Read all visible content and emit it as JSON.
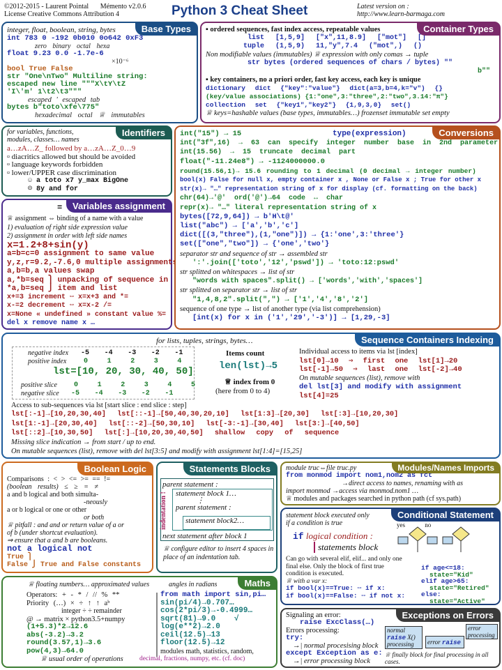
{
  "header": {
    "copyright": "©2012-2015 - Laurent Pointal",
    "version": "Mémento v2.0.6",
    "license": "License Creative Commons Attribution 4",
    "title": "Python 3 Cheat Sheet",
    "latest_label": "Latest version on :",
    "latest_url": "http://www.learn-barmaga.com"
  },
  "colors": {
    "base": "#1b4f86",
    "container": "#7a2a6a",
    "ident": "#1c5b52",
    "vars": "#4a2b8c",
    "conv": "#b5501e",
    "seq": "#1d5b9b",
    "bool": "#cc6a1f",
    "stmt": "#1e6062",
    "mod": "#837c22",
    "cond": "#1c3f7a",
    "maths": "#3c7d33",
    "exc": "#3a3a3a"
  },
  "base_types": {
    "title": "Base Types",
    "subtitle": "integer, float, boolean, string, bytes",
    "lines": [
      "  int  783   0  -192    0b010  0o642  0xF3",
      "               zero              binary    octal     hexa",
      "float  9.23  0.0    -1.7e-6",
      "                                 ×10⁻⁶",
      " bool  True  False",
      "  str  \"One\\nTwo\"          Multiline string:",
      "       escaped new line       \"\"\"X\\tY\\tZ",
      "         'I\\'m'               1\\t2\\t3\"\"\"",
      "         escaped '            escaped tab",
      "bytes  b\"toto\\xfe\\775\"",
      "         hexadecimal  octal              ♕ immutables"
    ]
  },
  "container_types": {
    "title": "Container Types",
    "lines": [
      "▪ ordered sequences, fast index access, repeatable values",
      "        list  [1,5,9]     [\"x\",11,8.9]      [\"mot\"]       []",
      "       tuple  (1,5,9)     11,\"y\",7.4       (\"mot\",)      ()",
      "Non modifiable values (immutables)  ♕ expression with only comas → tuple",
      "        str bytes  (ordered sequences of chars / bytes)          \"\"",
      "                                                                b\"\"",
      "▪ key containers, no a priori order, fast key access, each key is unique",
      "dictionary   dict {\"key\":\"value\"}       dict(a=3,b=4,k=\"v\")    {}",
      "(key/value associations) {1:\"one\",3:\"three\",2:\"two\",3.14:\"π\"}",
      "collection    set {\"key1\",\"key2\"}      {1,9,3,0}            set()",
      "♕ keys=hashable values (base types, immutables…)   frozenset immutable set   empty"
    ]
  },
  "identifiers": {
    "title": "Identifiers",
    "subtitle": "for variables, functions,\nmodules, classes… names",
    "lines": [
      "a…zA…Z_ followed by a…zA…Z_0…9",
      "▫ diacritics allowed but should be avoided",
      "▫ language keywords forbidden",
      "▫ lower/UPPER case discrimination",
      "      ☺ a toto x7 y_max BigOne",
      "      ☹ 8y and for"
    ]
  },
  "variables": {
    "title": "Variables assignment",
    "symbol": "=",
    "lines": [
      "♕ assignment ⇔ binding of a name with a value",
      " 1) evaluation of right side expression value",
      " 2) assignment in order with left side names",
      "x=1.2+8+sin(y)",
      "a=b=c=0   assignment to same value",
      "y,z,r=9.2,-7.6,0  multiple assignments",
      "a,b=b,a   values swap",
      "a,*b=seq ⎫ unpacking of sequence in",
      "*a,b=seq ⎭ item and list",
      "x+=3      increment ⇔ x=x+3              and *=",
      "x-=2      decrement ⇔ x=x-2                  /=",
      "x=None    « undefined » constant value       %=",
      "del x     remove name x                       …"
    ]
  },
  "conversions": {
    "title": "Conversions",
    "type_expr": "type(expression)",
    "lines": [
      "int(\"15\") → 15",
      "int(\"3f\",16) → 63        can specify integer number base in 2nd parameter",
      "int(15.56) → 15           truncate decimal part",
      "float(\"-11.24e8\") → -1124000000.0",
      "round(15.56,1)→ 15.6      rounding to 1 decimal (0 decimal → integer number)",
      "bool(x)  False for null x, empty container x , None or False x ; True for other x",
      "str(x)→ \"…\"    representation string of x for display (cf. formatting on the back)",
      "chr(64)→'@'  ord('@')→64        code ↔ char",
      "repr(x)→ \"…\"  literal representation string of x",
      "bytes([72,9,64]) → b'H\\t@'",
      "list(\"abc\") → ['a','b','c']",
      "dict([(3,\"three\"),(1,\"one\")]) → {1:'one',3:'three'}",
      "set([\"one\",\"two\"]) → {'one','two'}",
      "separator str and sequence of str → assembled str",
      "   ':'.join(['toto','12','pswd']) → 'toto:12:pswd'",
      "str splitted on whitespaces → list of str",
      "   \"words with  spaces\".split() → ['words','with','spaces']",
      "str splitted on separator str → list of str",
      "   \"1,4,8,2\".split(\",\") → ['1','4','8','2']",
      "sequence of one type → list of another type (via list comprehension)",
      "   [int(x) for x in ('1','29','-3')] → [1,29,-3]"
    ]
  },
  "sequence": {
    "title": "Sequence Containers Indexing",
    "subtitle": "for lists, tuples, strings, bytes…",
    "table": {
      "neg_label": "negative index",
      "neg": [
        "-5",
        "-4",
        "-3",
        "-2",
        "-1"
      ],
      "pos_label": "positive index",
      "pos": [
        "0",
        "1",
        "2",
        "3",
        "4"
      ],
      "lst": "lst=[10, 20, 30, 40, 50]",
      "pslice_label": "positive slice",
      "pslice": [
        "0",
        "1",
        "2",
        "3",
        "4",
        "5"
      ],
      "nslice_label": "negative slice",
      "nslice": [
        "-5",
        "-4",
        "-3",
        "-2",
        "-1"
      ]
    },
    "count_title": "Items count",
    "count_expr": "len(lst)→5",
    "index_note": "♕ index from 0",
    "index_range": "(here from 0 to 4)",
    "items_lines": [
      "Individual access to items via lst [index]",
      "lst[0]→10    ⇒ first one        lst[1]→20",
      "lst[-1]→50   ⇒ last one         lst[-2]→40",
      "On mutable sequences (list), remove with",
      "del lst[3] and modify with assignment",
      "lst[4]=25"
    ],
    "sub_title": "Access to sub-sequences via lst [start slice : end slice : step]",
    "sub_lines": [
      "lst[:-1]→[10,20,30,40]   lst[::-1]→[50,40,30,20,10]   lst[1:3]→[20,30]      lst[:3]→[10,20,30]",
      "lst[1:-1]→[20,30,40]     lst[::-2]→[50,30,10]         lst[-3:-1]→[30,40]    lst[3:]→[40,50]",
      "lst[::2]→[10,30,50]      lst[:]→[10,20,30,40,50] shallow copy of sequence"
    ],
    "missing": "Missing slice indication → from start / up to end.",
    "mutable": "On mutable sequences (list), remove with del lst[3:5] and modify with assignment lst[1:4]=[15,25]"
  },
  "boolean": {
    "title": "Boolean Logic",
    "lines": [
      "Comparisons : <  >  <=  >=  ==  !=",
      "(boolean results)      ≤   ≥   =   ≠",
      "a and b  logical and  both simulta-",
      "                      -neously",
      "a or b   logical or   one or other",
      "                      or both",
      "♕ pitfall : and and or return value of a or",
      "of b (under shortcut evaluation).",
      "⇒ ensure that a and b are booleans.",
      "not a    logical not",
      "True  ⎫",
      "False ⎭  True and False constants"
    ]
  },
  "statements": {
    "title": "Statements Blocks",
    "parent1": "parent statement :",
    "block1": "statement block 1…",
    "parent2": "parent statement :",
    "block2": "statement block2…",
    "next": "next statement after block 1",
    "indent_label": "indentation !",
    "note": "♕ configure editor to insert 4 spaces in place of an indentation tab."
  },
  "modules": {
    "title": "Modules/Names Imports",
    "header": "module truc⇔file truc.py",
    "lines": [
      "from monmod import nom1,nom2 as fct",
      "               →direct access to names, renaming with as",
      "import monmod  →access via monmod.nom1 …",
      "♕ modules and packages searched in python path (cf sys.path)"
    ]
  },
  "conditional": {
    "title": "Conditional Statement",
    "intro": "statement block executed only\nif a condition is true",
    "if_kw": "if",
    "cond": "logical condition :",
    "block": "statements block",
    "yes": "yes",
    "no": "no",
    "q": "?",
    "lines": [
      "Can go with several elif, elif... and only one",
      "final else. Only the block of first true",
      "condition is executed.",
      "♕ with a var x:",
      "if bool(x)==True: ⇔ if x:",
      "if bool(x)==False: ⇔ if not x:"
    ],
    "example": [
      "if age<=18:",
      "   state=\"Kid\"",
      "elif age>65:",
      "   state=\"Retired\"",
      "else:",
      "   state=\"Active\""
    ]
  },
  "maths": {
    "title": "Maths",
    "note": "♕ floating numbers… approximated values",
    "angles": "angles in radians",
    "left": [
      "Operators: + - * / // % **",
      "Priority (…)   × ÷   ↑    ↑   aᵇ",
      "           integer ÷  ÷ remainder",
      "@ → matrix × python3.5+numpy",
      "(1+5.3)*2→12.6",
      "abs(-3.2)→3.2",
      "round(3.57,1)→3.6",
      "pow(4,3)→64.0",
      "    ♕ usual order of operations"
    ],
    "right": [
      "from math import sin,pi…",
      "sin(pi/4)→0.707…",
      "cos(2*pi/3)→-0.4999…",
      "sqrt(81)→9.0     √",
      "log(e**2)→2.0",
      "ceil(12.5)→13",
      "floor(12.5)→12",
      "modules math, statistics, random,",
      "decimal, fractions, numpy, etc. (cf. doc)"
    ]
  },
  "exceptions": {
    "title": "Exceptions on Errors",
    "lines": [
      "Signaling an error:",
      "   raise ExcClass(…)",
      "Errors processing:",
      "try:",
      "  →| normal procesising block",
      "except Exception as e:",
      "  →| error processing block"
    ],
    "diagram": {
      "normal": "normal",
      "raise": "raise",
      "x": "X()",
      "processing": "processing",
      "error": "error",
      "error_processing": "error processing"
    },
    "finally": "♕ finally block for final processing in all cases."
  }
}
